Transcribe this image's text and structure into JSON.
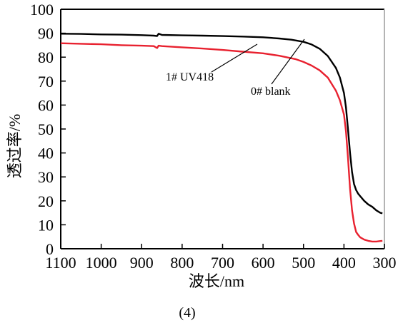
{
  "chart_data": {
    "type": "line",
    "xlabel": "波长/nm",
    "ylabel": "透过率/%",
    "caption": "(4)",
    "xlim": [
      1100,
      300
    ],
    "ylim": [
      0,
      100
    ],
    "x_ticks": [
      1100,
      1000,
      900,
      800,
      700,
      600,
      500,
      400,
      300
    ],
    "y_ticks": [
      0,
      10,
      20,
      30,
      40,
      50,
      60,
      70,
      80,
      90,
      100
    ],
    "grid": false,
    "series": [
      {
        "name": "0# blank",
        "color": "#000000",
        "x": [
          1100,
          1050,
          1000,
          950,
          900,
          870,
          862,
          858,
          850,
          800,
          750,
          700,
          650,
          600,
          560,
          530,
          500,
          480,
          460,
          440,
          420,
          410,
          400,
          395,
          390,
          385,
          380,
          375,
          370,
          365,
          360,
          350,
          340,
          330,
          320,
          310,
          305
        ],
        "y": [
          89.8,
          89.7,
          89.5,
          89.4,
          89.2,
          89.0,
          88.8,
          89.8,
          89.3,
          89.1,
          89.0,
          88.8,
          88.6,
          88.3,
          87.8,
          87.3,
          86.4,
          85.3,
          83.5,
          80.5,
          75.5,
          71.5,
          65.0,
          59.0,
          50.0,
          40.0,
          32.0,
          27.0,
          24.5,
          23.0,
          22.0,
          20.0,
          18.5,
          17.5,
          16.0,
          15.0,
          14.8
        ]
      },
      {
        "name": "1# UV418",
        "color": "#e8212f",
        "x": [
          1100,
          1050,
          1000,
          950,
          900,
          870,
          862,
          858,
          850,
          800,
          750,
          700,
          650,
          600,
          560,
          520,
          500,
          480,
          460,
          440,
          420,
          410,
          400,
          395,
          390,
          385,
          380,
          375,
          370,
          365,
          360,
          350,
          340,
          330,
          320,
          310,
          305
        ],
        "y": [
          85.8,
          85.6,
          85.4,
          85.0,
          84.8,
          84.6,
          83.8,
          84.8,
          84.6,
          84.1,
          83.6,
          83.0,
          82.3,
          81.6,
          80.6,
          79.2,
          78.0,
          76.5,
          74.5,
          71.5,
          66.0,
          62.0,
          56.0,
          49.0,
          38.0,
          25.0,
          16.0,
          10.5,
          7.0,
          5.8,
          4.8,
          3.8,
          3.3,
          3.0,
          3.0,
          3.2,
          3.3
        ]
      }
    ],
    "annotations": [
      {
        "text": "1# UV418",
        "series": "1# UV418"
      },
      {
        "text": "0# blank",
        "series": "0# blank"
      }
    ]
  }
}
